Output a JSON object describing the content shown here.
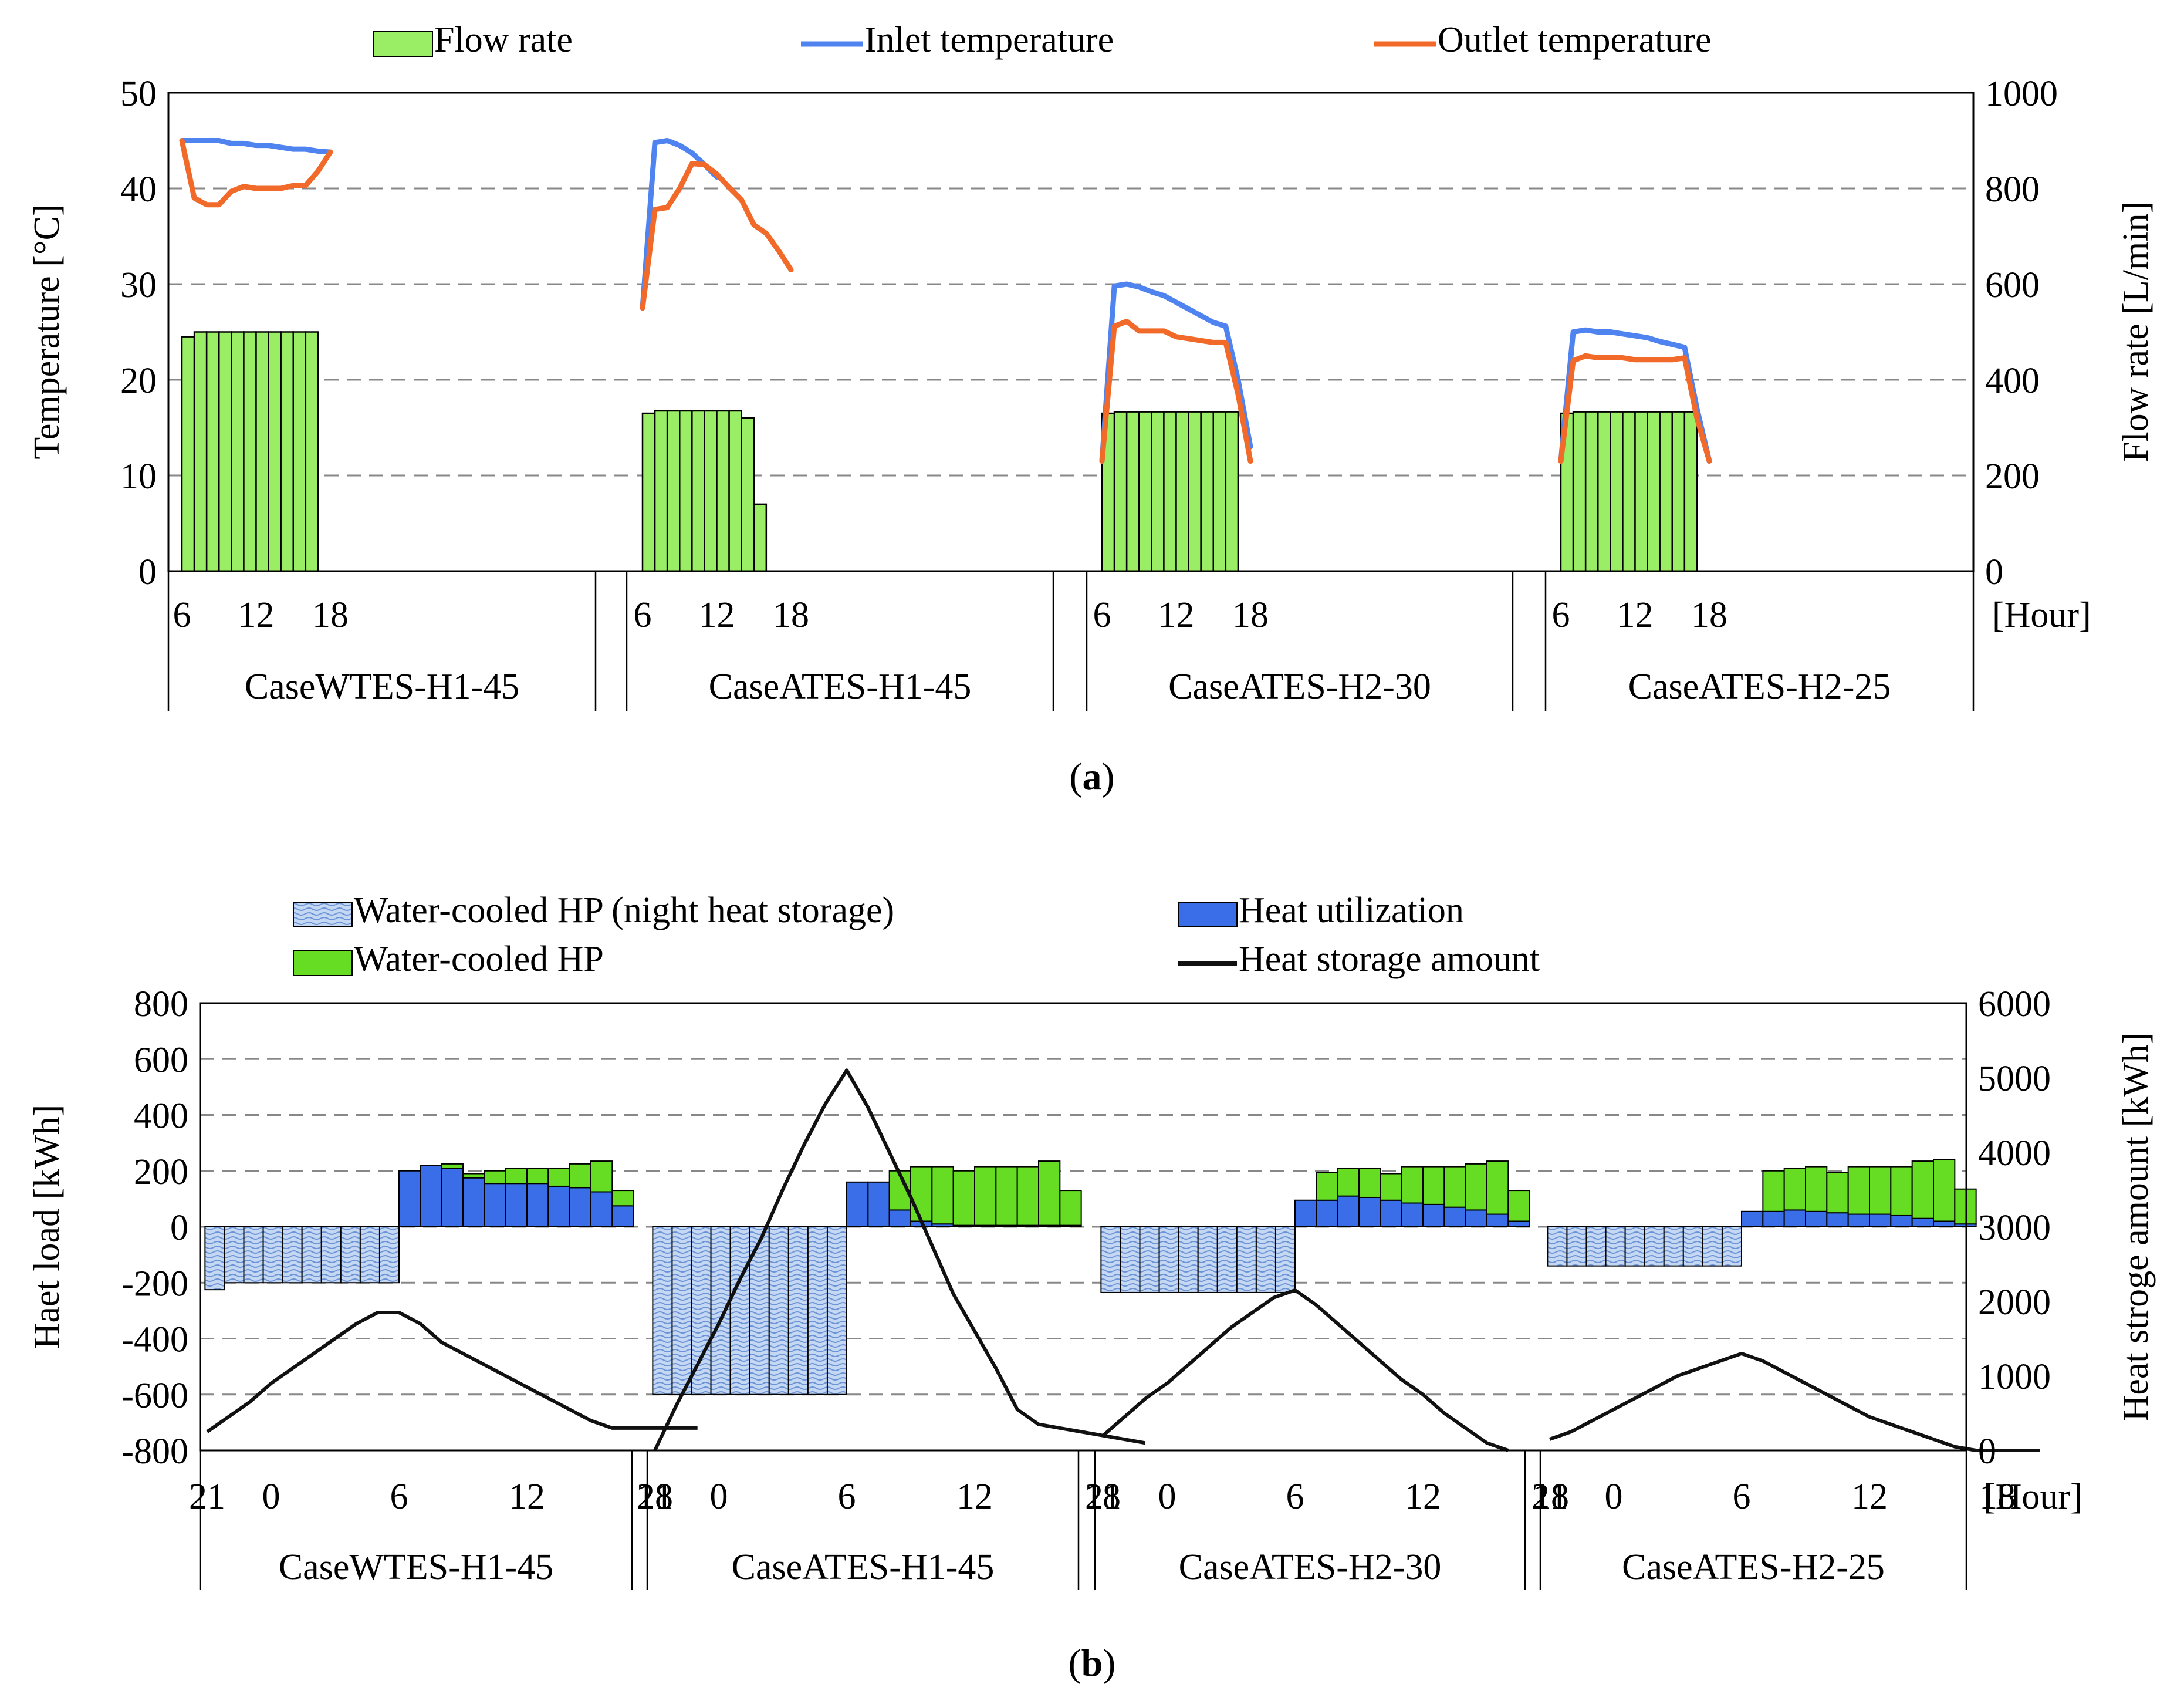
{
  "chart_data": [
    {
      "type": "bar+line",
      "panel_label": "a",
      "legend": [
        "Flow rate",
        "Inlet temperature",
        "Outlet temperature"
      ],
      "ylabel": "Temperature [°C]",
      "y2label": "Flow rate [L/min]",
      "ylim": [
        0,
        50
      ],
      "y2lim": [
        0,
        1000
      ],
      "yticks": [
        "0",
        "10",
        "20",
        "30",
        "40",
        "50"
      ],
      "y2ticks": [
        "0",
        "200",
        "400",
        "600",
        "800",
        "1000"
      ],
      "x_unit": "[Hour]",
      "x_tick_labels": [
        "6",
        "12",
        "18"
      ],
      "bar_hours": [
        6.5,
        7.5,
        8.5,
        9.5,
        10.5,
        11.5,
        12.5,
        13.5,
        14.5,
        15.5,
        16.5
      ],
      "line_hours": [
        6,
        7,
        8,
        9,
        10,
        11,
        12,
        13,
        14,
        15,
        16,
        17,
        18
      ],
      "colors": {
        "flow": "#99ee66",
        "inlet": "#4f83f0",
        "outlet": "#f26a2a",
        "grid": "#888888"
      },
      "groups": [
        {
          "name": "CaseWTES-H1-45",
          "flow_rate": [
            490,
            500,
            500,
            500,
            500,
            500,
            500,
            500,
            500,
            500,
            500
          ],
          "inlet_temperature": [
            45,
            45,
            45,
            45,
            44.7,
            44.7,
            44.5,
            44.5,
            44.3,
            44.1,
            44.1,
            43.9,
            43.8
          ],
          "outlet_temperature": [
            45,
            39,
            38.3,
            38.3,
            39.7,
            40.2,
            40,
            40,
            40,
            40.3,
            40.3,
            41.8,
            43.8
          ]
        },
        {
          "name": "CaseATES-H1-45",
          "flow_rate": [
            330,
            335,
            335,
            335,
            335,
            335,
            335,
            335,
            320,
            140
          ],
          "inlet_temperature": [
            27.5,
            44.8,
            45,
            44.5,
            43.7,
            42.5,
            41.2
          ],
          "outlet_temperature": [
            27.5,
            37.8,
            38,
            40,
            42.6,
            42.5,
            41.5,
            40.1,
            38.8,
            36.2,
            35.3,
            33.5,
            31.5
          ]
        },
        {
          "name": "CaseATES-H2-30",
          "flow_rate": [
            330,
            333,
            333,
            333,
            333,
            333,
            333,
            333,
            333,
            333,
            333
          ],
          "inlet_temperature": [
            11.5,
            29.8,
            30,
            29.7,
            29.2,
            28.8,
            28.1,
            27.4,
            26.7,
            26,
            25.6,
            20,
            13
          ],
          "outlet_temperature": [
            11.5,
            25.6,
            26.1,
            25.1,
            25.1,
            25.1,
            24.5,
            24.3,
            24.1,
            23.9,
            23.9,
            18.5,
            11.5
          ]
        },
        {
          "name": "CaseATES-H2-25",
          "flow_rate": [
            330,
            333,
            333,
            333,
            333,
            333,
            333,
            333,
            333,
            333,
            333
          ],
          "inlet_temperature": [
            11.5,
            25,
            25.2,
            25,
            25,
            24.8,
            24.6,
            24.4,
            24,
            23.7,
            23.4,
            17,
            11.5
          ],
          "outlet_temperature": [
            11.5,
            22,
            22.5,
            22.3,
            22.3,
            22.3,
            22.1,
            22.1,
            22.1,
            22.1,
            22.3,
            16,
            11.5
          ]
        }
      ]
    },
    {
      "type": "bar+line",
      "panel_label": "b",
      "legend": [
        "Water-cooled HP (night heat storage)",
        "Heat utilization",
        "Water-cooled HP",
        "Heat storage amount"
      ],
      "ylabel": "Haet load [kWh]",
      "y2label": "Heat stroge amount [kWh]",
      "ylim": [
        -800,
        800
      ],
      "y2lim": [
        0,
        6000
      ],
      "yticks": [
        "-800",
        "-600",
        "-400",
        "-200",
        "0",
        "200",
        "400",
        "600",
        "800"
      ],
      "y2ticks": [
        "0",
        "1000",
        "2000",
        "3000",
        "4000",
        "5000",
        "6000"
      ],
      "x_unit": "[Hour]",
      "x_tick_labels": [
        "21",
        "0",
        "6",
        "12",
        "18"
      ],
      "colors": {
        "night": "#c5d8f3",
        "night_hatch": "#6b93d6",
        "utilization": "#3a6ee8",
        "hp": "#66dd22",
        "storage": "#111111",
        "grid": "#888888"
      },
      "groups": [
        {
          "name": "CaseWTES-H1-45",
          "night_storage": [
            -225,
            -200,
            -200,
            -200,
            -200,
            -200,
            -200,
            -200,
            -200,
            -200
          ],
          "heat_utilization": [
            200,
            220,
            210,
            175,
            155,
            155,
            155,
            145,
            140,
            125,
            75
          ],
          "water_cooled_hp": [
            0,
            0,
            15,
            15,
            45,
            55,
            55,
            65,
            85,
            110,
            55
          ],
          "heat_storage_amount": [
            250,
            450,
            650,
            900,
            1100,
            1300,
            1500,
            1700,
            1850,
            1850,
            1700,
            1450,
            1300,
            1150,
            1000,
            850,
            700,
            550,
            400,
            300,
            300,
            300,
            300,
            300
          ]
        },
        {
          "name": "CaseATES-H1-45",
          "night_storage": [
            -600,
            -600,
            -600,
            -600,
            -600,
            -600,
            -600,
            -600,
            -600,
            -600
          ],
          "heat_utilization": [
            160,
            160,
            60,
            20,
            10,
            5,
            5,
            5,
            5,
            5,
            5
          ],
          "water_cooled_hp": [
            0,
            0,
            140,
            195,
            205,
            195,
            210,
            210,
            210,
            230,
            125
          ],
          "heat_storage_amount": [
            0,
            600,
            1150,
            1700,
            2300,
            2850,
            3500,
            4100,
            4650,
            5100,
            4600,
            4000,
            3400,
            2750,
            2100,
            1600,
            1100,
            550,
            350,
            300,
            250,
            200,
            150,
            100
          ]
        },
        {
          "name": "CaseATES-H2-30",
          "night_storage": [
            -235,
            -235,
            -235,
            -235,
            -235,
            -235,
            -235,
            -235,
            -235,
            -235
          ],
          "heat_utilization": [
            95,
            95,
            110,
            105,
            95,
            85,
            80,
            70,
            60,
            45,
            20
          ],
          "water_cooled_hp": [
            0,
            100,
            100,
            105,
            95,
            130,
            135,
            145,
            165,
            190,
            110
          ],
          "heat_storage_amount": [
            200,
            450,
            700,
            900,
            1150,
            1400,
            1650,
            1850,
            2050,
            2150,
            1950,
            1700,
            1450,
            1200,
            950,
            750,
            500,
            300,
            100,
            0
          ]
        },
        {
          "name": "CaseATES-H2-25",
          "night_storage": [
            -140,
            -140,
            -140,
            -140,
            -140,
            -140,
            -140,
            -140,
            -140,
            -140
          ],
          "heat_utilization": [
            55,
            55,
            60,
            55,
            50,
            45,
            45,
            40,
            30,
            20,
            10
          ],
          "water_cooled_hp": [
            0,
            145,
            150,
            160,
            145,
            170,
            170,
            175,
            205,
            220,
            125
          ],
          "heat_storage_amount": [
            150,
            250,
            400,
            550,
            700,
            850,
            1000,
            1100,
            1200,
            1300,
            1200,
            1050,
            900,
            750,
            600,
            450,
            350,
            250,
            150,
            50,
            0,
            0,
            0,
            0
          ]
        }
      ]
    }
  ]
}
